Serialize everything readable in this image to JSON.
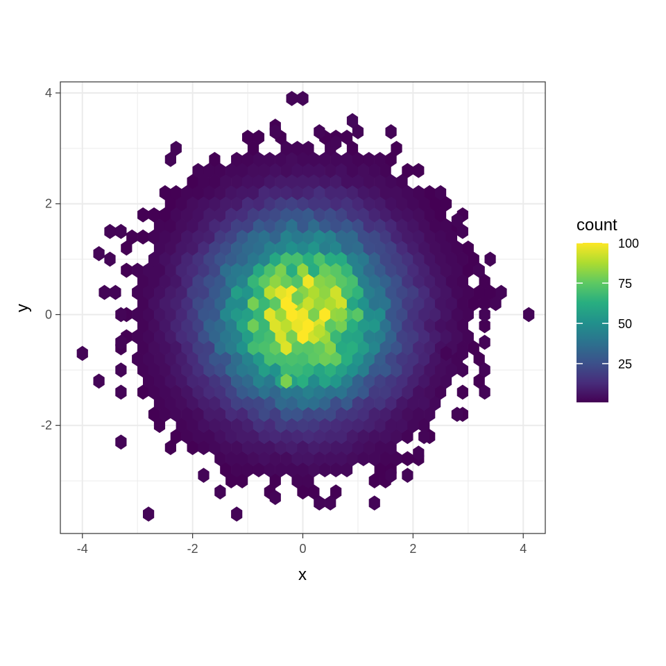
{
  "chart_data": {
    "type": "hexbin",
    "xlabel": "x",
    "ylabel": "y",
    "xlim": [
      -4.4,
      4.4
    ],
    "ylim": [
      -3.95,
      4.2
    ],
    "x_ticks": [
      -4,
      -2,
      0,
      2,
      4
    ],
    "y_ticks": [
      -2,
      0,
      2,
      4
    ],
    "x_tick_labels": [
      "-4",
      "-2",
      "0",
      "2",
      "4"
    ],
    "y_tick_labels": [
      "-2",
      "0",
      "2",
      "4"
    ],
    "grid": true,
    "legend": {
      "title": "count",
      "placement": "right",
      "range": [
        1,
        100
      ],
      "ticks": [
        25,
        50,
        75,
        100
      ],
      "tick_labels": [
        "25",
        "50",
        "75",
        "100"
      ]
    },
    "distribution": {
      "center": [
        0,
        0
      ],
      "sd": [
        1,
        1
      ],
      "peak_count": 100
    },
    "bin_spacing": [
      0.2,
      0.2
    ],
    "cells": [
      [
        -0.2,
        0.2,
        100
      ],
      [
        0.5,
        0.2,
        88
      ],
      [
        0.3,
        -0.3,
        90
      ],
      [
        -0.4,
        0,
        85
      ],
      [
        0.7,
        0,
        83
      ],
      [
        -0.3,
        -1.2,
        80
      ],
      [
        0.2,
        0,
        80
      ],
      [
        -0.1,
        0.3,
        78
      ],
      [
        -0.2,
        3.9,
        2
      ],
      [
        0,
        3.9,
        2
      ],
      [
        0.9,
        3.5,
        3
      ],
      [
        1,
        3.3,
        2
      ],
      [
        0.3,
        3.3,
        2
      ],
      [
        1.6,
        3.3,
        2
      ],
      [
        0.6,
        3.1,
        2
      ],
      [
        -0.5,
        3.3,
        2
      ],
      [
        -2.3,
        3.0,
        2
      ],
      [
        -2.4,
        2.8,
        2
      ],
      [
        2.5,
        2.2,
        2
      ],
      [
        -1.7,
        2.6,
        2
      ],
      [
        -1.9,
        2.6,
        2
      ],
      [
        2.8,
        1.7,
        2
      ],
      [
        2.9,
        1.5,
        2
      ],
      [
        3.4,
        1.0,
        2
      ],
      [
        3.2,
        0.8,
        2
      ],
      [
        3.6,
        0.4,
        2
      ],
      [
        3.5,
        0.2,
        2
      ],
      [
        3.3,
        0,
        2
      ],
      [
        4.1,
        0,
        2
      ],
      [
        3.3,
        -0.5,
        2
      ],
      [
        3.3,
        -1,
        2
      ],
      [
        3.3,
        -1.4,
        2
      ],
      [
        2.8,
        -1.8,
        2
      ],
      [
        2.6,
        -0.7,
        2
      ],
      [
        2.9,
        -0.7,
        2
      ],
      [
        -3.5,
        1.5,
        2
      ],
      [
        -3.3,
        1.5,
        2
      ],
      [
        -3.7,
        1.1,
        2
      ],
      [
        -3.5,
        1.0,
        2
      ],
      [
        -3.6,
        0.4,
        2
      ],
      [
        -3.4,
        0.4,
        2
      ],
      [
        -3.3,
        0,
        2
      ],
      [
        -3.3,
        -0.5,
        2
      ],
      [
        -4.0,
        -0.7,
        2
      ],
      [
        -3.7,
        -1.2,
        2
      ],
      [
        -3.3,
        -1.0,
        2
      ],
      [
        -3.3,
        -1.4,
        2
      ],
      [
        -3.3,
        -2.3,
        2
      ],
      [
        -2.8,
        -3.6,
        2
      ],
      [
        -1.2,
        -3.6,
        2
      ],
      [
        -1.8,
        -2.9,
        2
      ],
      [
        -1.5,
        -3.2,
        2
      ],
      [
        -0.5,
        -3.3,
        2
      ],
      [
        1.3,
        -3.4,
        2
      ],
      [
        0.3,
        -3.4,
        2
      ],
      [
        0.5,
        -3.4,
        2
      ],
      [
        1.6,
        -2.9,
        2
      ],
      [
        1.9,
        -2.9,
        2
      ],
      [
        2.2,
        -2.2,
        2
      ],
      [
        2.1,
        -2.5,
        2
      ]
    ]
  }
}
